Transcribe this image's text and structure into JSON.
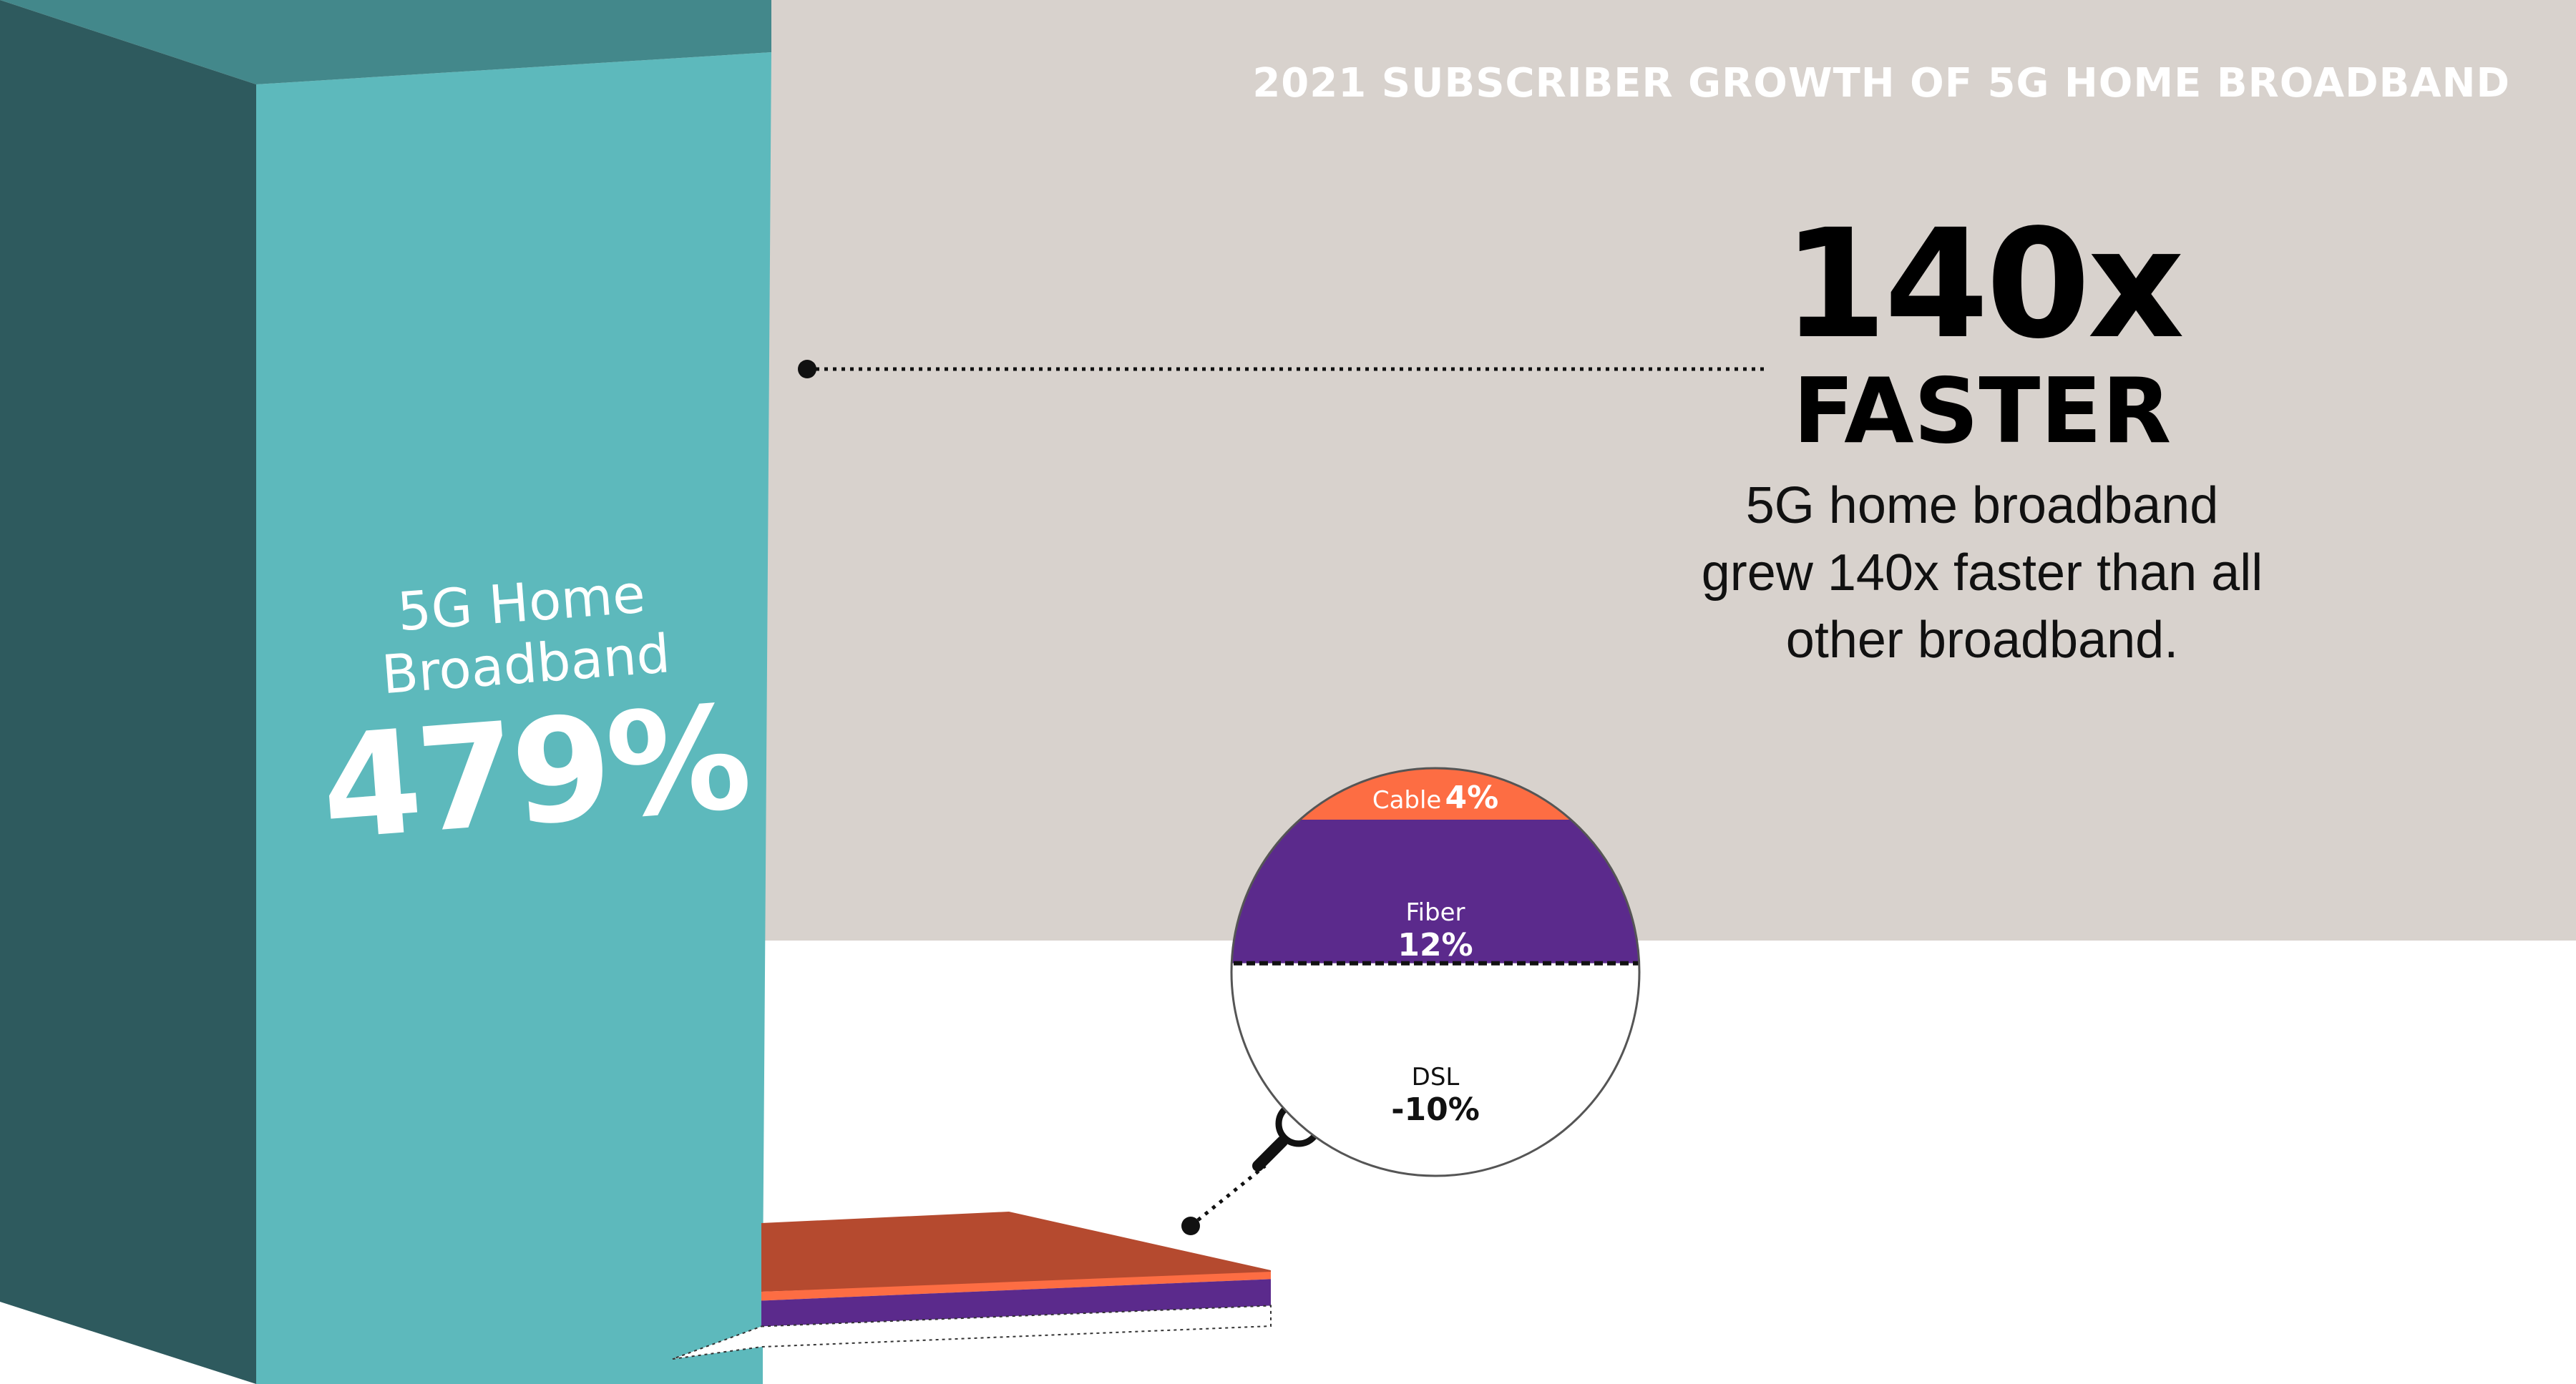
{
  "header": "2021 SUBSCRIBER GROWTH OF 5G HOME BROADBAND",
  "headline": {
    "value": "140x",
    "label": "FASTER",
    "description": [
      "5G home broadband",
      "grew 140x faster than all",
      "other broadband."
    ]
  },
  "chart_data": {
    "type": "bar",
    "title": "2021 SUBSCRIBER GROWTH OF 5G HOME BROADBAND",
    "unit": "%",
    "categories": [
      "5G Home Broadband",
      "Cable",
      "Fiber",
      "DSL"
    ],
    "values": [
      479,
      4,
      12,
      -10
    ],
    "labels": [
      {
        "name_lines": [
          "5G Home",
          "Broadband"
        ],
        "value": "479%"
      },
      {
        "name": "Cable",
        "value": "4%"
      },
      {
        "name": "Fiber",
        "value": "12%"
      },
      {
        "name": "DSL",
        "value": "-10%"
      }
    ]
  },
  "colors": {
    "background_panel": "#d8d2cd",
    "bar_5g_face": "#5db9bc",
    "bar_5g_side": "#2e5a5e",
    "bar_5g_top": "#43888b",
    "cable": "#fd6d43",
    "cable_top": "#b54a2f",
    "fiber": "#5b2a8c",
    "dsl": "#ffffff",
    "accent_dark": "#000000"
  },
  "icons": [
    "magnifier-icon"
  ]
}
